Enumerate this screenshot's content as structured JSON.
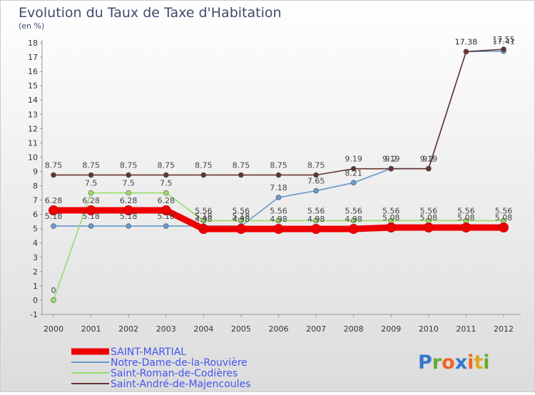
{
  "chart_data": {
    "type": "line",
    "title": "Evolution du Taux de Taxe d'Habitation",
    "subtitle": "(en %)",
    "xlabel": "",
    "ylabel": "",
    "ylim": [
      -1,
      18
    ],
    "yticks": [
      "-1",
      "0",
      "1",
      "2",
      "3",
      "4",
      "5",
      "6",
      "7",
      "8",
      "9",
      "10",
      "11",
      "12",
      "13",
      "14",
      "15",
      "16",
      "17",
      "18"
    ],
    "grid": false,
    "legend_position": "bottom-left",
    "categories": [
      "2000",
      "2001",
      "2002",
      "2003",
      "2004",
      "2005",
      "2006",
      "2007",
      "2008",
      "2009",
      "2010",
      "2011",
      "2012"
    ],
    "series": [
      {
        "name": "Notre-Dame-de-la-Rouvière",
        "color": "#6699cc",
        "values": [
          5.18,
          5.18,
          5.18,
          5.18,
          5.18,
          5.18,
          7.18,
          7.65,
          8.21,
          9.2,
          9.2,
          17.38,
          17.41
        ],
        "labels": [
          "5.18",
          "5.18",
          "5.18",
          "5.18",
          "5.18",
          "5.18",
          "7.18",
          "7.65",
          "8.21",
          "9.2",
          "9.2",
          "17.38",
          "17.41"
        ]
      },
      {
        "name": "Saint-Roman-de-Codières",
        "color": "#99dd66",
        "values": [
          0,
          7.5,
          7.5,
          7.5,
          5.56,
          5.56,
          5.56,
          5.56,
          5.56,
          5.56,
          5.56,
          5.56,
          5.56
        ],
        "labels": [
          "0",
          "7.5",
          "7.5",
          "7.5",
          "5.56",
          "5.56",
          "5.56",
          "5.56",
          "5.56",
          "5.56",
          "5.56",
          "5.56",
          "5.56"
        ]
      },
      {
        "name": "Saint-André-de-Majencoules",
        "color": "#663333",
        "values": [
          8.75,
          8.75,
          8.75,
          8.75,
          8.75,
          8.75,
          8.75,
          8.75,
          9.19,
          9.19,
          9.19,
          17.38,
          17.55
        ],
        "labels": [
          "8.75",
          "8.75",
          "8.75",
          "8.75",
          "8.75",
          "8.75",
          "8.75",
          "8.75",
          "9.19",
          "9.19",
          "9.19",
          "17.38",
          "17.55"
        ]
      },
      {
        "name": "SAINT-MARTIAL",
        "color": "#ee0000",
        "values": [
          6.28,
          6.28,
          6.28,
          6.28,
          4.98,
          4.98,
          4.98,
          4.98,
          4.98,
          5.08,
          5.08,
          5.08,
          5.08
        ],
        "labels": [
          "6.28",
          "6.28",
          "6.28",
          "6.28",
          "4.98",
          "4.98",
          "4.98",
          "4.98",
          "4.98",
          "5.08",
          "5.08",
          "5.08",
          "5.08"
        ]
      }
    ],
    "legend_order": [
      "SAINT-MARTIAL",
      "Notre-Dame-de-la-Rouvière",
      "Saint-Roman-de-Codières",
      "Saint-André-de-Majencoules"
    ]
  },
  "logo": {
    "text": "Proxiti"
  }
}
